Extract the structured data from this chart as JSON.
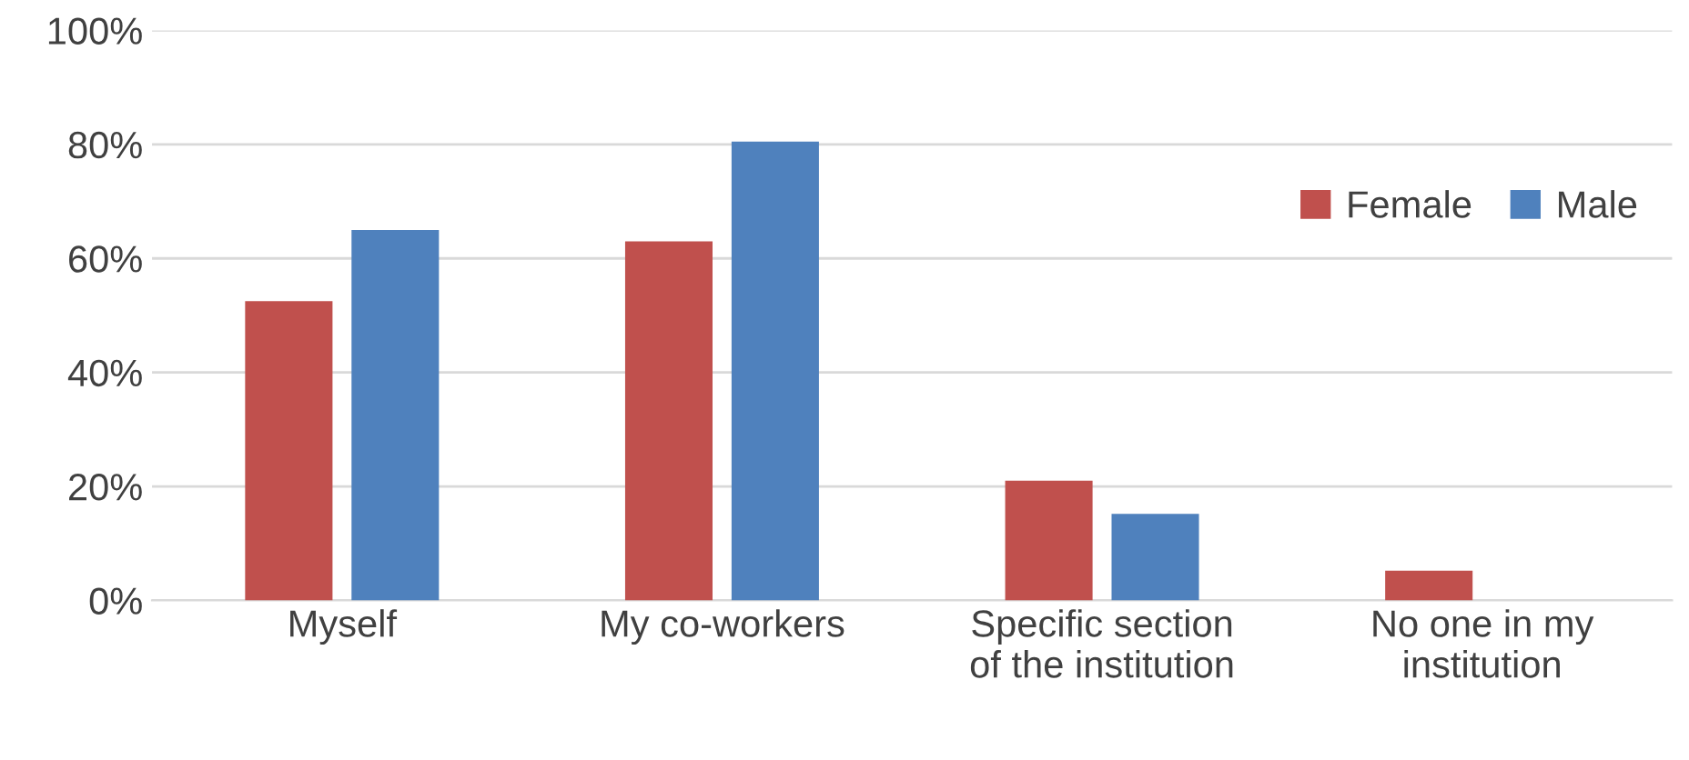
{
  "chart_data": {
    "type": "bar",
    "categories": [
      "Myself",
      "My co-workers",
      "Specific section of the institution",
      "No one in my institution"
    ],
    "series": [
      {
        "name": "Female",
        "color": "#c0504d",
        "values": [
          52.5,
          63,
          21,
          5.2
        ]
      },
      {
        "name": "Male",
        "color": "#4f81bd",
        "values": [
          65,
          80.5,
          15.2,
          null
        ]
      }
    ],
    "ylim": [
      0,
      100
    ],
    "yticks": [
      {
        "value": 0,
        "label": "0%"
      },
      {
        "value": 20,
        "label": "20%"
      },
      {
        "value": 40,
        "label": "40%"
      },
      {
        "value": 60,
        "label": "60%"
      },
      {
        "value": 80,
        "label": "80%"
      },
      {
        "value": 100,
        "label": "100%"
      }
    ],
    "grid": "y",
    "legend": "top right"
  }
}
